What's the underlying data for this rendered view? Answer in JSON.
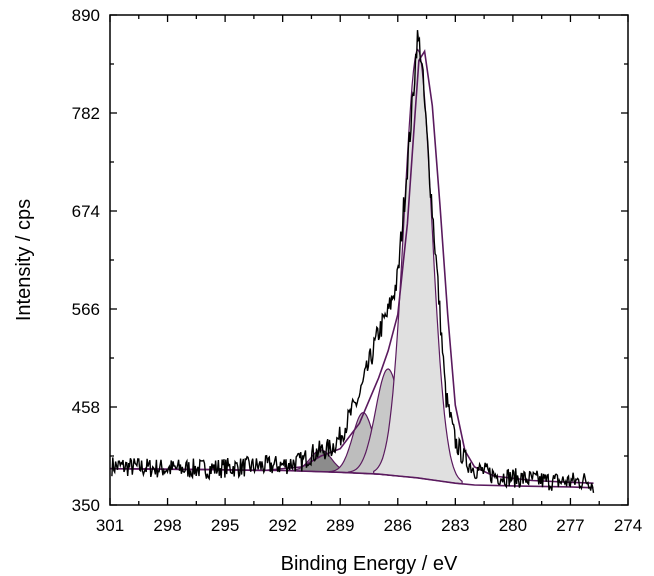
{
  "chart_data": {
    "type": "line",
    "title": "",
    "xlabel": "Binding Energy / eV",
    "ylabel": "Intensity / cps",
    "xlim": [
      301,
      274
    ],
    "ylim": [
      350,
      890
    ],
    "x_reversed": true,
    "xticks": [
      "301",
      "298",
      "295",
      "292",
      "289",
      "286",
      "283",
      "280",
      "277",
      "274"
    ],
    "yticks": [
      "350",
      "458",
      "566",
      "674",
      "782",
      "890"
    ],
    "grid": false,
    "legend": "none",
    "measured": {
      "x": [
        300.9,
        300,
        299,
        298,
        297,
        296,
        295,
        294,
        293,
        292,
        291,
        290.5,
        290,
        289.5,
        289,
        288.5,
        288,
        287.5,
        287,
        286.5,
        286,
        285.6,
        285.2,
        285,
        284.8,
        284.5,
        284,
        283.5,
        283,
        282.5,
        282,
        281,
        280,
        279,
        278,
        277,
        276,
        275.8
      ],
      "y": [
        393,
        392,
        391,
        390,
        390,
        390,
        391,
        392,
        393,
        394,
        398,
        406,
        410,
        412,
        425,
        448,
        470,
        505,
        540,
        562,
        600,
        700,
        800,
        865,
        850,
        760,
        620,
        470,
        420,
        400,
        390,
        383,
        380,
        378,
        376,
        376,
        377,
        372
      ]
    },
    "envelope": {
      "x": [
        301,
        296,
        293,
        291,
        290,
        289,
        288,
        287,
        286.5,
        286,
        285.5,
        285.1,
        284.9,
        284.6,
        284.2,
        283.8,
        283.4,
        283,
        282.5,
        282,
        281,
        279,
        277,
        275.8
      ],
      "y": [
        390,
        389,
        388,
        392,
        404,
        412,
        440,
        490,
        520,
        560,
        660,
        780,
        840,
        850,
        790,
        680,
        560,
        460,
        410,
        392,
        382,
        377,
        375,
        374
      ]
    },
    "background": {
      "x": [
        301,
        296,
        292,
        289,
        287,
        286,
        285,
        284,
        283,
        282,
        280,
        277,
        275.8
      ],
      "y": [
        390,
        389,
        388,
        386,
        384,
        382,
        380,
        377,
        374,
        372,
        371,
        370,
        369
      ]
    },
    "components": [
      {
        "center": 290.0,
        "height": 24,
        "sigma": 0.55,
        "fill": "#8c8c8c"
      },
      {
        "center": 287.8,
        "height": 67,
        "sigma": 0.55,
        "fill": "#bdbdbd"
      },
      {
        "center": 286.5,
        "height": 117,
        "sigma": 0.65,
        "fill": "#c8c8c8"
      },
      {
        "center": 284.95,
        "height": 472,
        "sigma": 0.72,
        "fill": "#e0e0e0"
      }
    ],
    "colors": {
      "measured": "#000000",
      "fit": "#5a1a5e",
      "axis": "#000000"
    }
  }
}
